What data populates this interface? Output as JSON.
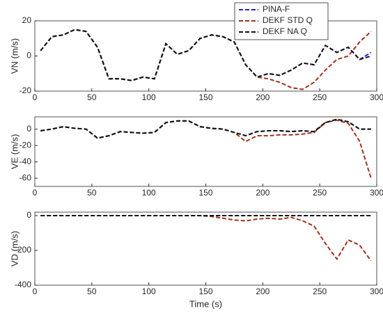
{
  "chart_data": [
    {
      "type": "line",
      "y_label": "VN (m/s)",
      "legend": "upper right",
      "x": [
        5,
        15,
        25,
        35,
        45,
        55,
        65,
        75,
        85,
        95,
        105,
        115,
        125,
        135,
        145,
        155,
        165,
        175,
        185,
        195,
        205,
        215,
        225,
        235,
        245,
        255,
        265,
        275,
        285,
        295
      ],
      "xlim": [
        0,
        300
      ],
      "xticks": [
        0,
        50,
        100,
        150,
        200,
        250,
        300
      ],
      "ylim": [
        -20,
        20
      ],
      "yticks": [
        -20,
        0,
        20
      ],
      "series": [
        {
          "name": "PINA-F",
          "color": "#1f1fd0",
          "values": [
            3,
            11,
            12,
            15,
            14,
            5,
            -13,
            -13,
            -14,
            -12,
            -13,
            7,
            1,
            3,
            10,
            12,
            11,
            8,
            -5,
            -12,
            -10,
            -11,
            -8,
            -4,
            -5,
            6,
            2,
            5,
            -2,
            2
          ]
        },
        {
          "name": "DEKF STD Q",
          "color": "#a0301e",
          "values": [
            3,
            11,
            12,
            15,
            14,
            5,
            -13,
            -13,
            -14,
            -12,
            -13,
            7,
            1,
            3,
            10,
            12,
            11,
            8,
            -5,
            -12,
            -13,
            -15,
            -18,
            -19,
            -15,
            -8,
            -2,
            0,
            8,
            14
          ]
        },
        {
          "name": "DEKF NA Q",
          "color": "#111111",
          "values": [
            3,
            11,
            12,
            15,
            14,
            5,
            -13,
            -13,
            -14,
            -12,
            -13,
            7,
            1,
            3,
            10,
            12,
            11,
            8,
            -5,
            -12,
            -10,
            -11,
            -8,
            -4,
            -5,
            6,
            2,
            5,
            -2,
            0
          ]
        }
      ]
    },
    {
      "type": "line",
      "y_label": "VE (m/s)",
      "x": [
        5,
        15,
        25,
        35,
        45,
        55,
        65,
        75,
        85,
        95,
        105,
        115,
        125,
        135,
        145,
        155,
        165,
        175,
        185,
        195,
        205,
        215,
        225,
        235,
        245,
        255,
        265,
        275,
        285,
        295
      ],
      "xlim": [
        0,
        300
      ],
      "xticks": [
        0,
        50,
        100,
        150,
        200,
        250,
        300
      ],
      "ylim": [
        -70,
        15
      ],
      "yticks": [
        -60,
        -40,
        -20,
        0
      ],
      "series": [
        {
          "color": "#1f1fd0",
          "values": [
            -2,
            0,
            3,
            1,
            0,
            -11,
            -8,
            -3,
            -4,
            -5,
            -4,
            8,
            10,
            10,
            3,
            1,
            0,
            -4,
            -8,
            -3,
            -2,
            -2,
            -3,
            -2,
            -3,
            8,
            12,
            9,
            0,
            0
          ]
        },
        {
          "color": "#a0301e",
          "values": [
            -2,
            0,
            3,
            1,
            0,
            -11,
            -8,
            -3,
            -4,
            -5,
            -4,
            8,
            10,
            10,
            3,
            1,
            0,
            -4,
            -15,
            -8,
            -8,
            -7,
            -7,
            -6,
            -4,
            8,
            11,
            7,
            -15,
            -60
          ]
        },
        {
          "color": "#111111",
          "values": [
            -2,
            0,
            3,
            1,
            0,
            -11,
            -8,
            -3,
            -4,
            -5,
            -4,
            8,
            10,
            10,
            3,
            1,
            0,
            -4,
            -8,
            -3,
            -2,
            -2,
            -3,
            -2,
            -3,
            8,
            12,
            9,
            0,
            0
          ]
        }
      ]
    },
    {
      "type": "line",
      "y_label": "VD (m/s)",
      "x_label": "Time (s)",
      "x": [
        5,
        15,
        25,
        35,
        45,
        55,
        65,
        75,
        85,
        95,
        105,
        115,
        125,
        135,
        145,
        155,
        165,
        175,
        185,
        195,
        205,
        215,
        225,
        235,
        245,
        255,
        265,
        275,
        285,
        295
      ],
      "xlim": [
        0,
        300
      ],
      "xticks": [
        0,
        50,
        100,
        150,
        200,
        250,
        300
      ],
      "ylim": [
        -400,
        20
      ],
      "yticks": [
        -400,
        -200,
        0
      ],
      "series": [
        {
          "color": "#1f1fd0",
          "values": [
            0,
            0,
            0,
            0,
            0,
            0,
            0,
            0,
            0,
            0,
            0,
            0,
            0,
            0,
            0,
            0,
            0,
            0,
            0,
            0,
            0,
            0,
            0,
            0,
            0,
            0,
            0,
            0,
            0,
            0
          ]
        },
        {
          "color": "#a0301e",
          "values": [
            0,
            0,
            0,
            0,
            0,
            0,
            0,
            0,
            0,
            0,
            0,
            0,
            0,
            0,
            0,
            -5,
            -15,
            -25,
            -30,
            -20,
            -15,
            -20,
            -10,
            -30,
            -60,
            -160,
            -250,
            -140,
            -170,
            -260
          ]
        },
        {
          "color": "#111111",
          "values": [
            0,
            0,
            0,
            0,
            0,
            0,
            0,
            0,
            0,
            0,
            0,
            0,
            0,
            0,
            0,
            0,
            0,
            0,
            0,
            0,
            0,
            0,
            0,
            0,
            0,
            0,
            0,
            0,
            0,
            0
          ]
        }
      ]
    }
  ]
}
